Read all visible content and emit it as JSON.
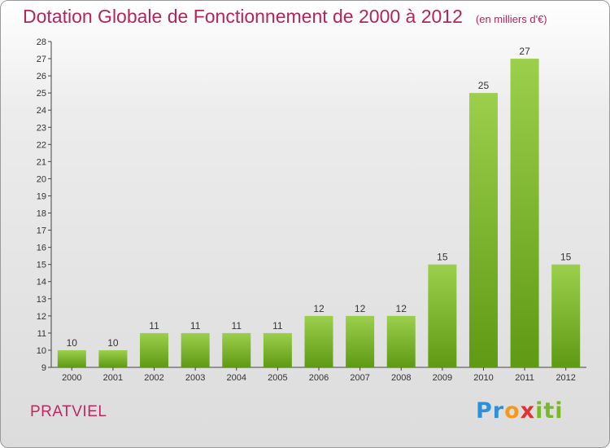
{
  "title": "Dotation Globale de Fonctionnement de 2000 à 2012",
  "subtitle": "(en milliers d'€)",
  "commune": "PRATVIEL",
  "logo": {
    "p1": "Pr",
    "p2": "o",
    "p3": "x",
    "p4": "iti"
  },
  "colors": {
    "bar_top": "#9ccf4c",
    "bar_bottom": "#5f9a14",
    "title": "#b5255c"
  },
  "chart_data": {
    "type": "bar",
    "categories": [
      "2000",
      "2001",
      "2002",
      "2003",
      "2004",
      "2005",
      "2006",
      "2007",
      "2008",
      "2009",
      "2010",
      "2011",
      "2012"
    ],
    "values": [
      10,
      10,
      11,
      11,
      11,
      11,
      12,
      12,
      12,
      15,
      25,
      27,
      15
    ],
    "data_labels": [
      "10",
      "10",
      "11",
      "11",
      "11",
      "11",
      "12",
      "12",
      "12",
      "15",
      "25",
      "27",
      "15"
    ],
    "ylim": [
      9,
      28
    ],
    "yticks": [
      "9",
      "10",
      "11",
      "12",
      "13",
      "14",
      "15",
      "16",
      "17",
      "18",
      "19",
      "20",
      "21",
      "22",
      "23",
      "24",
      "25",
      "26",
      "27",
      "28"
    ],
    "grid": false
  }
}
